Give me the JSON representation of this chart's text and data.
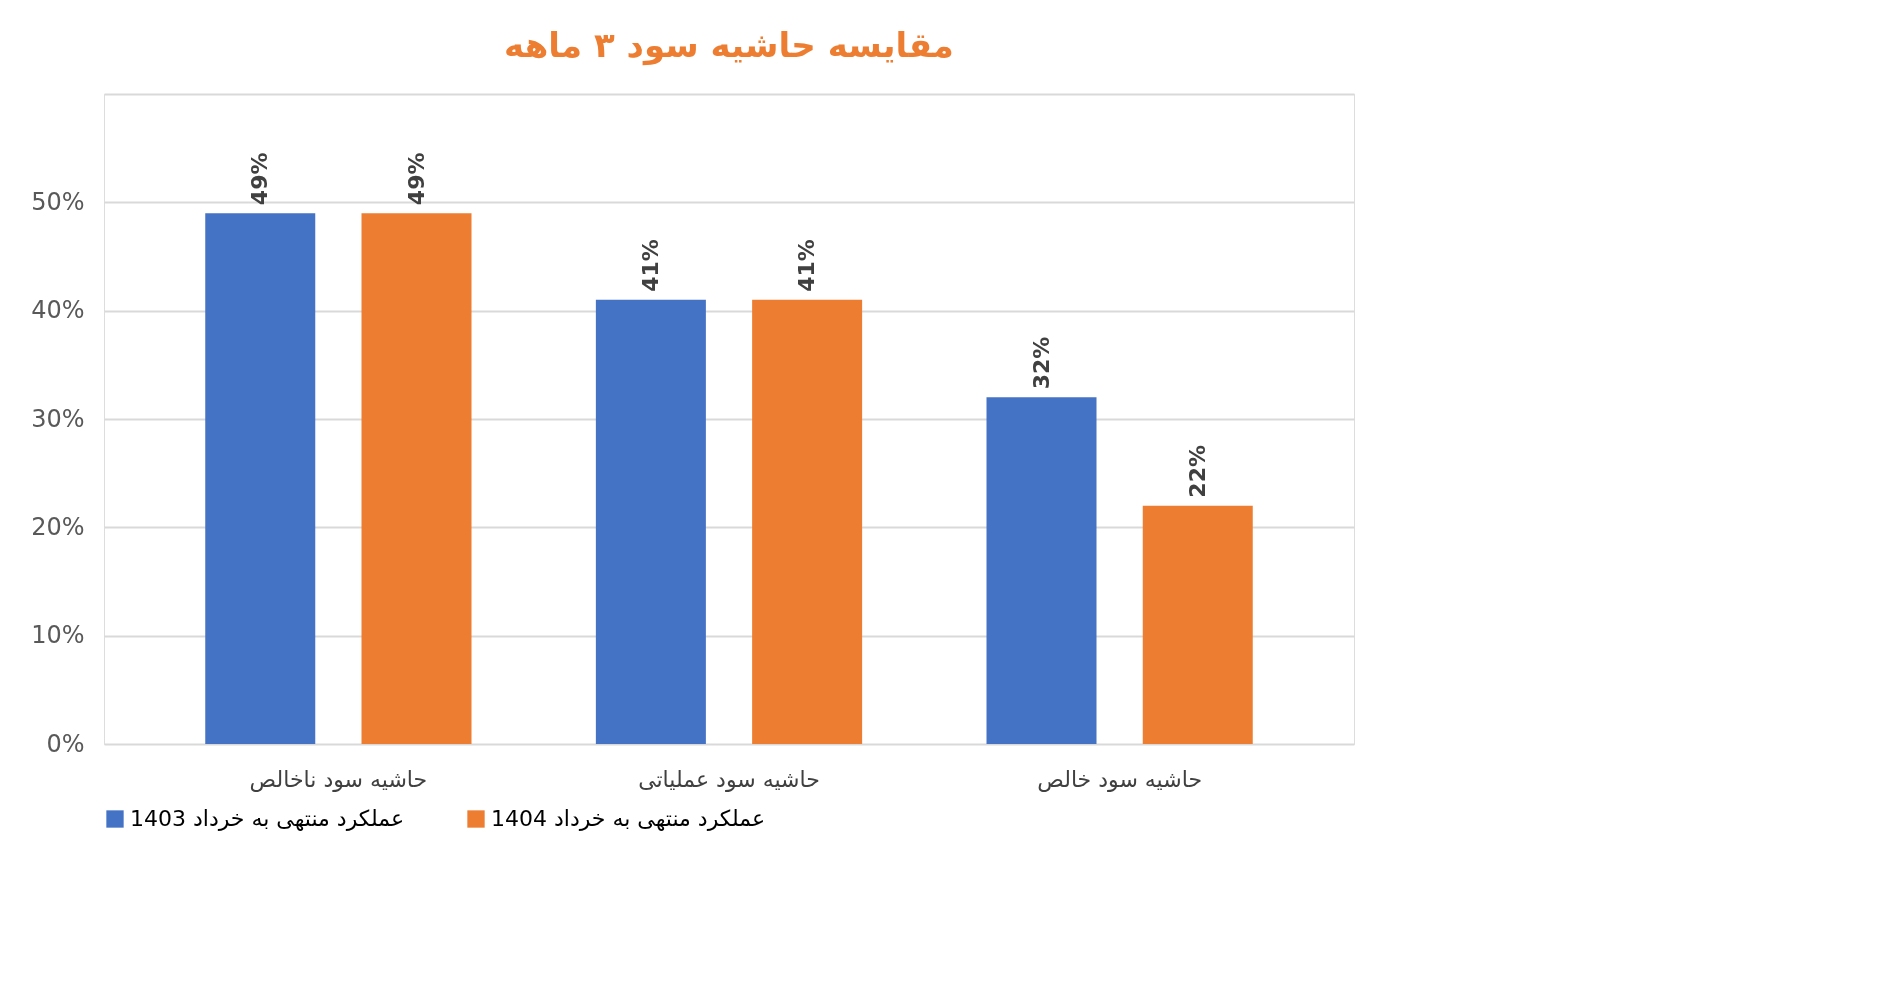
{
  "chart_data": {
    "type": "bar",
    "title": "مقایسه حاشیه سود ۳ ماهه",
    "categories": [
      "حاشیه سود ناخالص",
      "حاشیه سود عملیاتی",
      "حاشیه سود خالص"
    ],
    "series": [
      {
        "name": "عملکرد منتهی به خرداد 1403",
        "color": "#4472c4",
        "values": [
          49,
          41,
          32
        ],
        "value_labels": [
          "49%",
          "41%",
          "32%"
        ]
      },
      {
        "name": "عملکرد منتهی به خرداد 1404",
        "color": "#ed7d31",
        "values": [
          49,
          41,
          22
        ],
        "value_labels": [
          "49%",
          "41%",
          "22%"
        ]
      }
    ],
    "ylim": [
      0,
      60
    ],
    "yticks": [
      {
        "value": 0,
        "label": "0%"
      },
      {
        "value": 10,
        "label": "10%"
      },
      {
        "value": 20,
        "label": "20%"
      },
      {
        "value": 30,
        "label": "30%"
      },
      {
        "value": 40,
        "label": "40%"
      },
      {
        "value": 50,
        "label": "50%"
      },
      {
        "value": 60,
        "label": null
      }
    ],
    "grid": "y",
    "legend": "bottom"
  }
}
